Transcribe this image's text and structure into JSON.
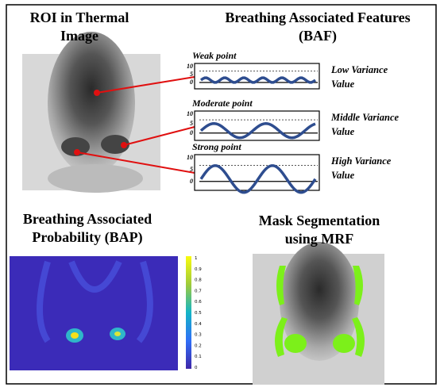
{
  "roi": {
    "title": [
      "ROI in Thermal",
      "Image"
    ]
  },
  "baf": {
    "title": [
      "Breathing Associated Features",
      "(BAF)"
    ],
    "plots": [
      {
        "label": "Weak point",
        "yticks": [
          "10",
          "5",
          "0"
        ],
        "annotation": [
          "Low Variance",
          "Value"
        ]
      },
      {
        "label": "Moderate point",
        "yticks": [
          "10",
          "5",
          "0"
        ],
        "annotation": [
          "Middle Variance",
          "Value"
        ]
      },
      {
        "label": "Strong point",
        "yticks": [
          "10",
          "5",
          "0"
        ],
        "annotation": [
          "High Variance",
          "Value"
        ]
      }
    ]
  },
  "bap": {
    "title": [
      "Breathing Associated",
      "Probability (BAP)"
    ],
    "colorbar_ticks": [
      "1",
      "0.9",
      "0.8",
      "0.7",
      "0.6",
      "0.5",
      "0.4",
      "0.3",
      "0.2",
      "0.1",
      "0"
    ]
  },
  "mask": {
    "title": [
      "Mask Segmentation",
      "using MRF"
    ]
  }
}
